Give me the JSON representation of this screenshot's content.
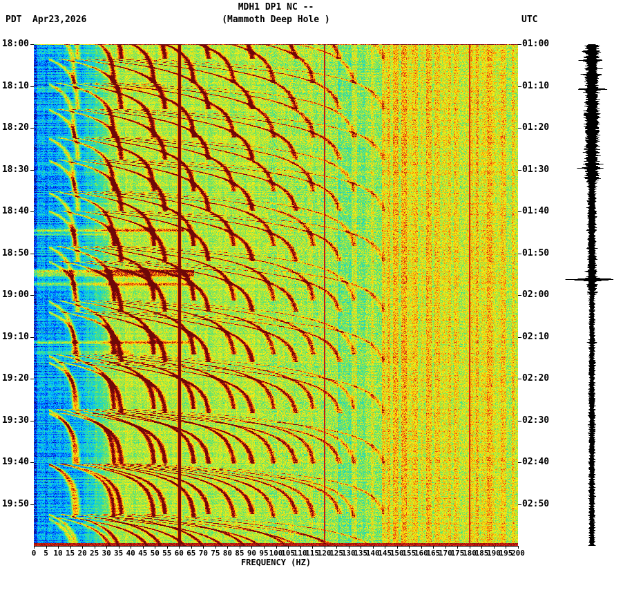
{
  "header": {
    "tz_left": "PDT",
    "date": "Apr23,2026",
    "title": "MDH1 DP1 NC --",
    "subtitle": "(Mammoth Deep Hole )",
    "tz_right": "UTC"
  },
  "left_time_labels": [
    "18:00",
    "18:10",
    "18:20",
    "18:30",
    "18:40",
    "18:50",
    "19:00",
    "19:10",
    "19:20",
    "19:30",
    "19:40",
    "19:50"
  ],
  "right_time_labels": [
    "01:00",
    "01:10",
    "01:20",
    "01:30",
    "01:40",
    "01:50",
    "02:00",
    "02:10",
    "02:20",
    "02:30",
    "02:40",
    "02:50"
  ],
  "x_axis": {
    "label": "FREQUENCY (HZ)",
    "ticks": [
      "0",
      "5",
      "10",
      "15",
      "20",
      "25",
      "30",
      "35",
      "40",
      "45",
      "50",
      "55",
      "60",
      "65",
      "70",
      "75",
      "80",
      "85",
      "90",
      "95",
      "100",
      "105",
      "110",
      "115",
      "120",
      "125",
      "130",
      "135",
      "140",
      "145",
      "150",
      "155",
      "160",
      "165",
      "170",
      "175",
      "180",
      "185",
      "190",
      "195",
      "200"
    ]
  },
  "chart_data": {
    "type": "heatmap",
    "subtype": "seismic spectrogram with vertical seismogram trace at right",
    "station": "MDH1 DP1 NC --",
    "station_name": "(Mammoth Deep Hole )",
    "date_local": "Apr23,2026",
    "freq_axis": {
      "label": "FREQUENCY (HZ)",
      "min_hz": 0,
      "max_hz": 200,
      "tick_step_hz": 5
    },
    "time_axis": {
      "left_zone": "PDT",
      "left_start": "18:00",
      "left_end": "20:00",
      "right_zone": "UTC",
      "right_start": "01:00",
      "right_end": "03:00",
      "tick_minutes": 10,
      "total_minutes": 120
    },
    "colormap": "jet: blue = low power, green/yellow = moderate, orange/red = high, dark red = strongest",
    "features": {
      "powerline_noise_hz": [
        60,
        120,
        180
      ],
      "powerline_note": "strong wide dark-red line at 60 Hz, thin lines at 120 and 180 Hz",
      "repeating_harmonic_glides": {
        "description": "stacked upward-curving dark-red harmonic arcs repeating through the whole 2 hours; fundamental glides up to ~17-18 Hz, harmonics visible to ~150 Hz",
        "approx_period_min": 12,
        "fundamental_asymptote_hz": [
          16.6,
          18.2
        ],
        "max_harmonic": 8
      },
      "broadband_bursts_pdt": [
        "18:44",
        "18:54",
        "18:55",
        "18:57",
        "19:11"
      ],
      "largest_trace_event_utc": "01:56",
      "background": "blue below ~20 Hz, green-yellow 30-130 Hz, speckled yellow-orange above 140 Hz, red band along bottom edge"
    },
    "render_seed": 12345,
    "render": {
      "glides": [
        {
          "period": 12.1,
          "phase": 3.4,
          "f0": 18.2
        },
        {
          "period": 13.0,
          "phase": 9.2,
          "f0": 16.6
        }
      ],
      "bursts": [
        {
          "t": 10.6,
          "fmax": 55,
          "s": 0.16
        },
        {
          "t": 44.4,
          "fmax": 62,
          "s": 0.3
        },
        {
          "t": 45.4,
          "fmax": 30,
          "s": 0.18
        },
        {
          "t": 54.2,
          "fmax": 66,
          "s": 0.46
        },
        {
          "t": 55.1,
          "fmax": 66,
          "s": 0.34
        },
        {
          "t": 57.4,
          "fmax": 64,
          "s": 0.3
        },
        {
          "t": 71.3,
          "fmax": 64,
          "s": 0.26
        },
        {
          "t": 73.6,
          "fmax": 40,
          "s": 0.16
        }
      ],
      "trace_spikes": [
        {
          "t": 1.6,
          "a": 15
        },
        {
          "t": 3.8,
          "a": 19
        },
        {
          "t": 5.8,
          "a": 13
        },
        {
          "t": 7.2,
          "a": 17
        },
        {
          "t": 10.7,
          "a": 21
        },
        {
          "t": 11.5,
          "a": 13
        },
        {
          "t": 13.8,
          "a": 11
        },
        {
          "t": 22.5,
          "a": 9
        },
        {
          "t": 28.6,
          "a": 17
        },
        {
          "t": 29.6,
          "a": 19
        },
        {
          "t": 31.0,
          "a": 11
        },
        {
          "t": 44.4,
          "a": 9
        },
        {
          "t": 54.3,
          "a": 11
        },
        {
          "t": 56.2,
          "a": 37
        },
        {
          "t": 57.4,
          "a": 9
        },
        {
          "t": 71.3,
          "a": 7
        },
        {
          "t": 95.0,
          "a": 6
        }
      ]
    }
  }
}
